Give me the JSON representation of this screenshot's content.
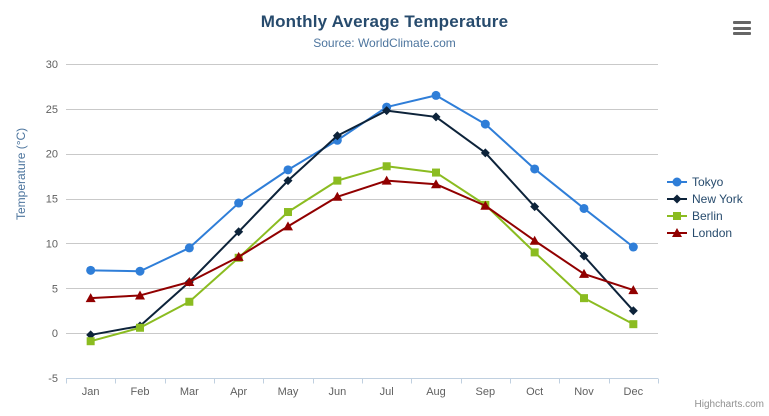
{
  "header": {
    "title": "Monthly Average Temperature",
    "subtitle": "Source: WorldClimate.com"
  },
  "toolbar": {
    "export_menu_icon": "hamburger-icon"
  },
  "credits": {
    "label": "Highcharts.com"
  },
  "colors": {
    "title": "#274b6d",
    "subtitle": "#4d759e",
    "axis_title": "#4d759e",
    "tick_label": "#606060",
    "gridline": "#c9c9c9",
    "axis_line": "#c0d0e0",
    "legend_text": "#274b6d",
    "credits_text": "#909090"
  },
  "chart_data": {
    "type": "line",
    "title": "Monthly Average Temperature",
    "subtitle": "Source: WorldClimate.com",
    "categories": [
      "Jan",
      "Feb",
      "Mar",
      "Apr",
      "May",
      "Jun",
      "Jul",
      "Aug",
      "Sep",
      "Oct",
      "Nov",
      "Dec"
    ],
    "series": [
      {
        "name": "Tokyo",
        "color": "#2f7ed8",
        "marker": "circle",
        "values": [
          7.0,
          6.9,
          9.5,
          14.5,
          18.2,
          21.5,
          25.2,
          26.5,
          23.3,
          18.3,
          13.9,
          9.6
        ]
      },
      {
        "name": "New York",
        "color": "#0d233a",
        "marker": "diamond",
        "values": [
          -0.2,
          0.8,
          5.7,
          11.3,
          17.0,
          22.0,
          24.8,
          24.1,
          20.1,
          14.1,
          8.6,
          2.5
        ]
      },
      {
        "name": "Berlin",
        "color": "#8bbc21",
        "marker": "square",
        "values": [
          -0.9,
          0.6,
          3.5,
          8.4,
          13.5,
          17.0,
          18.6,
          17.9,
          14.3,
          9.0,
          3.9,
          1.0
        ]
      },
      {
        "name": "London",
        "color": "#910000",
        "marker": "triangle",
        "values": [
          3.9,
          4.2,
          5.7,
          8.5,
          11.9,
          15.2,
          17.0,
          16.6,
          14.2,
          10.3,
          6.6,
          4.8
        ]
      }
    ],
    "xlabel": "",
    "ylabel": "Temperature (°C)",
    "ylim": [
      -5,
      30
    ],
    "ytick_step": 5,
    "yticks": [
      -5,
      0,
      5,
      10,
      15,
      20,
      25,
      30
    ],
    "grid": true,
    "legend_position": "right"
  }
}
